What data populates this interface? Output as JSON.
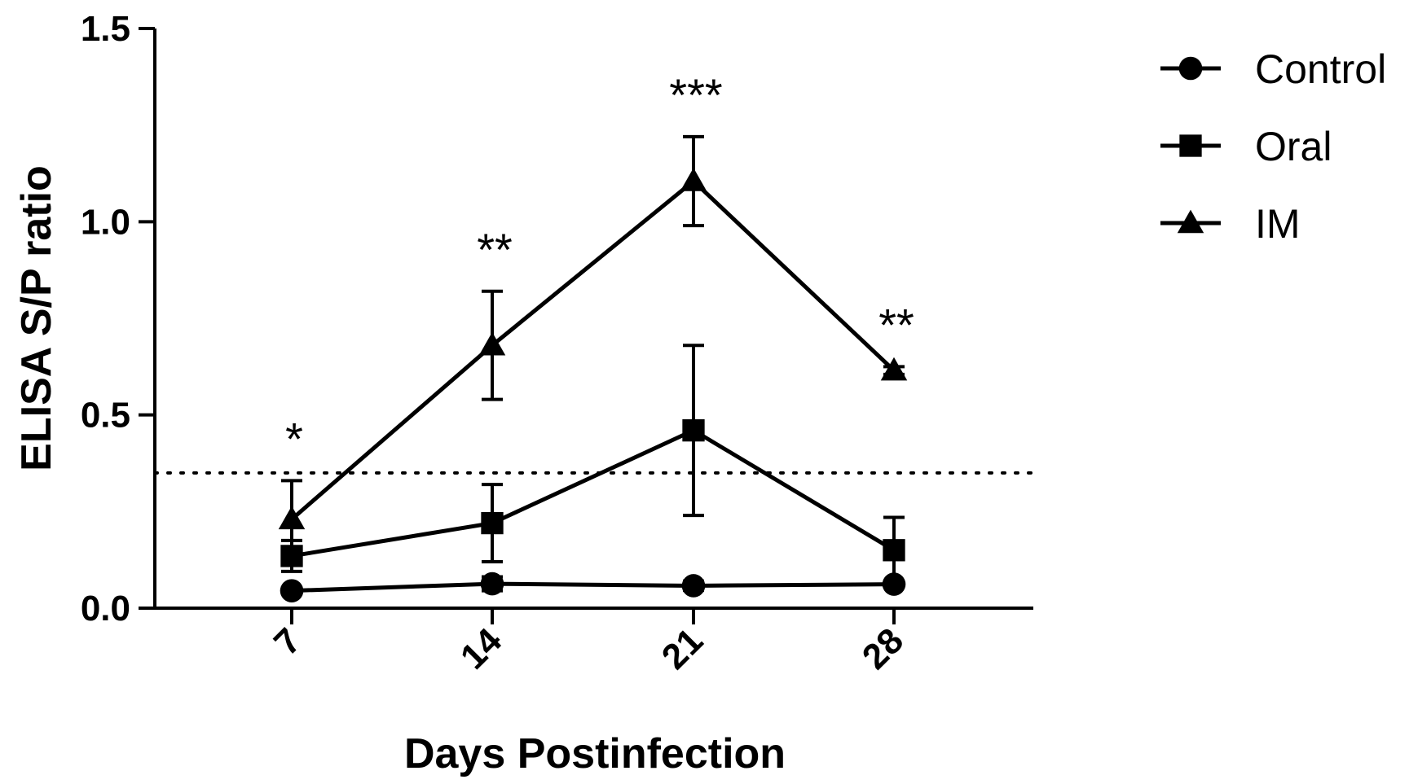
{
  "chart_data": {
    "type": "line",
    "xlabel": "Days Postinfection",
    "ylabel": "ELISA S/P ratio",
    "ylim": [
      0,
      1.5
    ],
    "yticks": [
      "0.0",
      "0.5",
      "1.0",
      "1.5"
    ],
    "yticks_values": [
      0,
      0.5,
      1.0,
      1.5
    ],
    "categories": [
      "7",
      "14",
      "21",
      "28"
    ],
    "threshold": 0.35,
    "grid": false,
    "legend_position": "top-right",
    "series": [
      {
        "name": "Control",
        "marker": "circle",
        "color": "#000000",
        "values": [
          0.045,
          0.063,
          0.058,
          0.062
        ],
        "error": [
          0.0,
          0.018,
          0.012,
          0.008
        ]
      },
      {
        "name": "Oral",
        "marker": "square",
        "color": "#000000",
        "values": [
          0.135,
          0.22,
          0.46,
          0.15
        ],
        "error": [
          0.04,
          0.1,
          0.22,
          0.085
        ]
      },
      {
        "name": "IM",
        "marker": "triangle",
        "color": "#000000",
        "values": [
          0.23,
          0.68,
          1.105,
          0.615
        ],
        "error": [
          0.1,
          0.14,
          0.115,
          0.01
        ]
      }
    ],
    "annotations": [
      "*",
      "**",
      "***",
      "**"
    ]
  }
}
